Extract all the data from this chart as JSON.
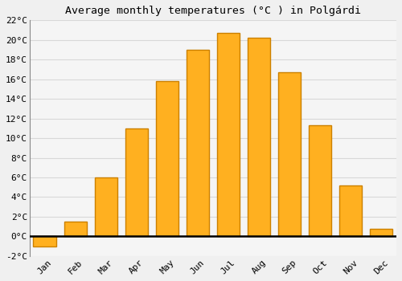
{
  "title": "Average monthly temperatures (°C ) in Polgárdi",
  "months": [
    "Jan",
    "Feb",
    "Mar",
    "Apr",
    "May",
    "Jun",
    "Jul",
    "Aug",
    "Sep",
    "Oct",
    "Nov",
    "Dec"
  ],
  "values": [
    -1.0,
    1.5,
    6.0,
    11.0,
    15.8,
    19.0,
    20.7,
    20.2,
    16.7,
    11.3,
    5.2,
    0.8
  ],
  "bar_color": "#FFB020",
  "bar_edge_color": "#CC8000",
  "background_color": "#f0f0f0",
  "plot_bg_color": "#f5f5f5",
  "grid_color": "#d8d8d8",
  "ylim": [
    -2,
    22
  ],
  "yticks": [
    -2,
    0,
    2,
    4,
    6,
    8,
    10,
    12,
    14,
    16,
    18,
    20,
    22
  ],
  "title_fontsize": 9.5,
  "tick_fontsize": 8,
  "font_family": "monospace",
  "bar_width": 0.75
}
